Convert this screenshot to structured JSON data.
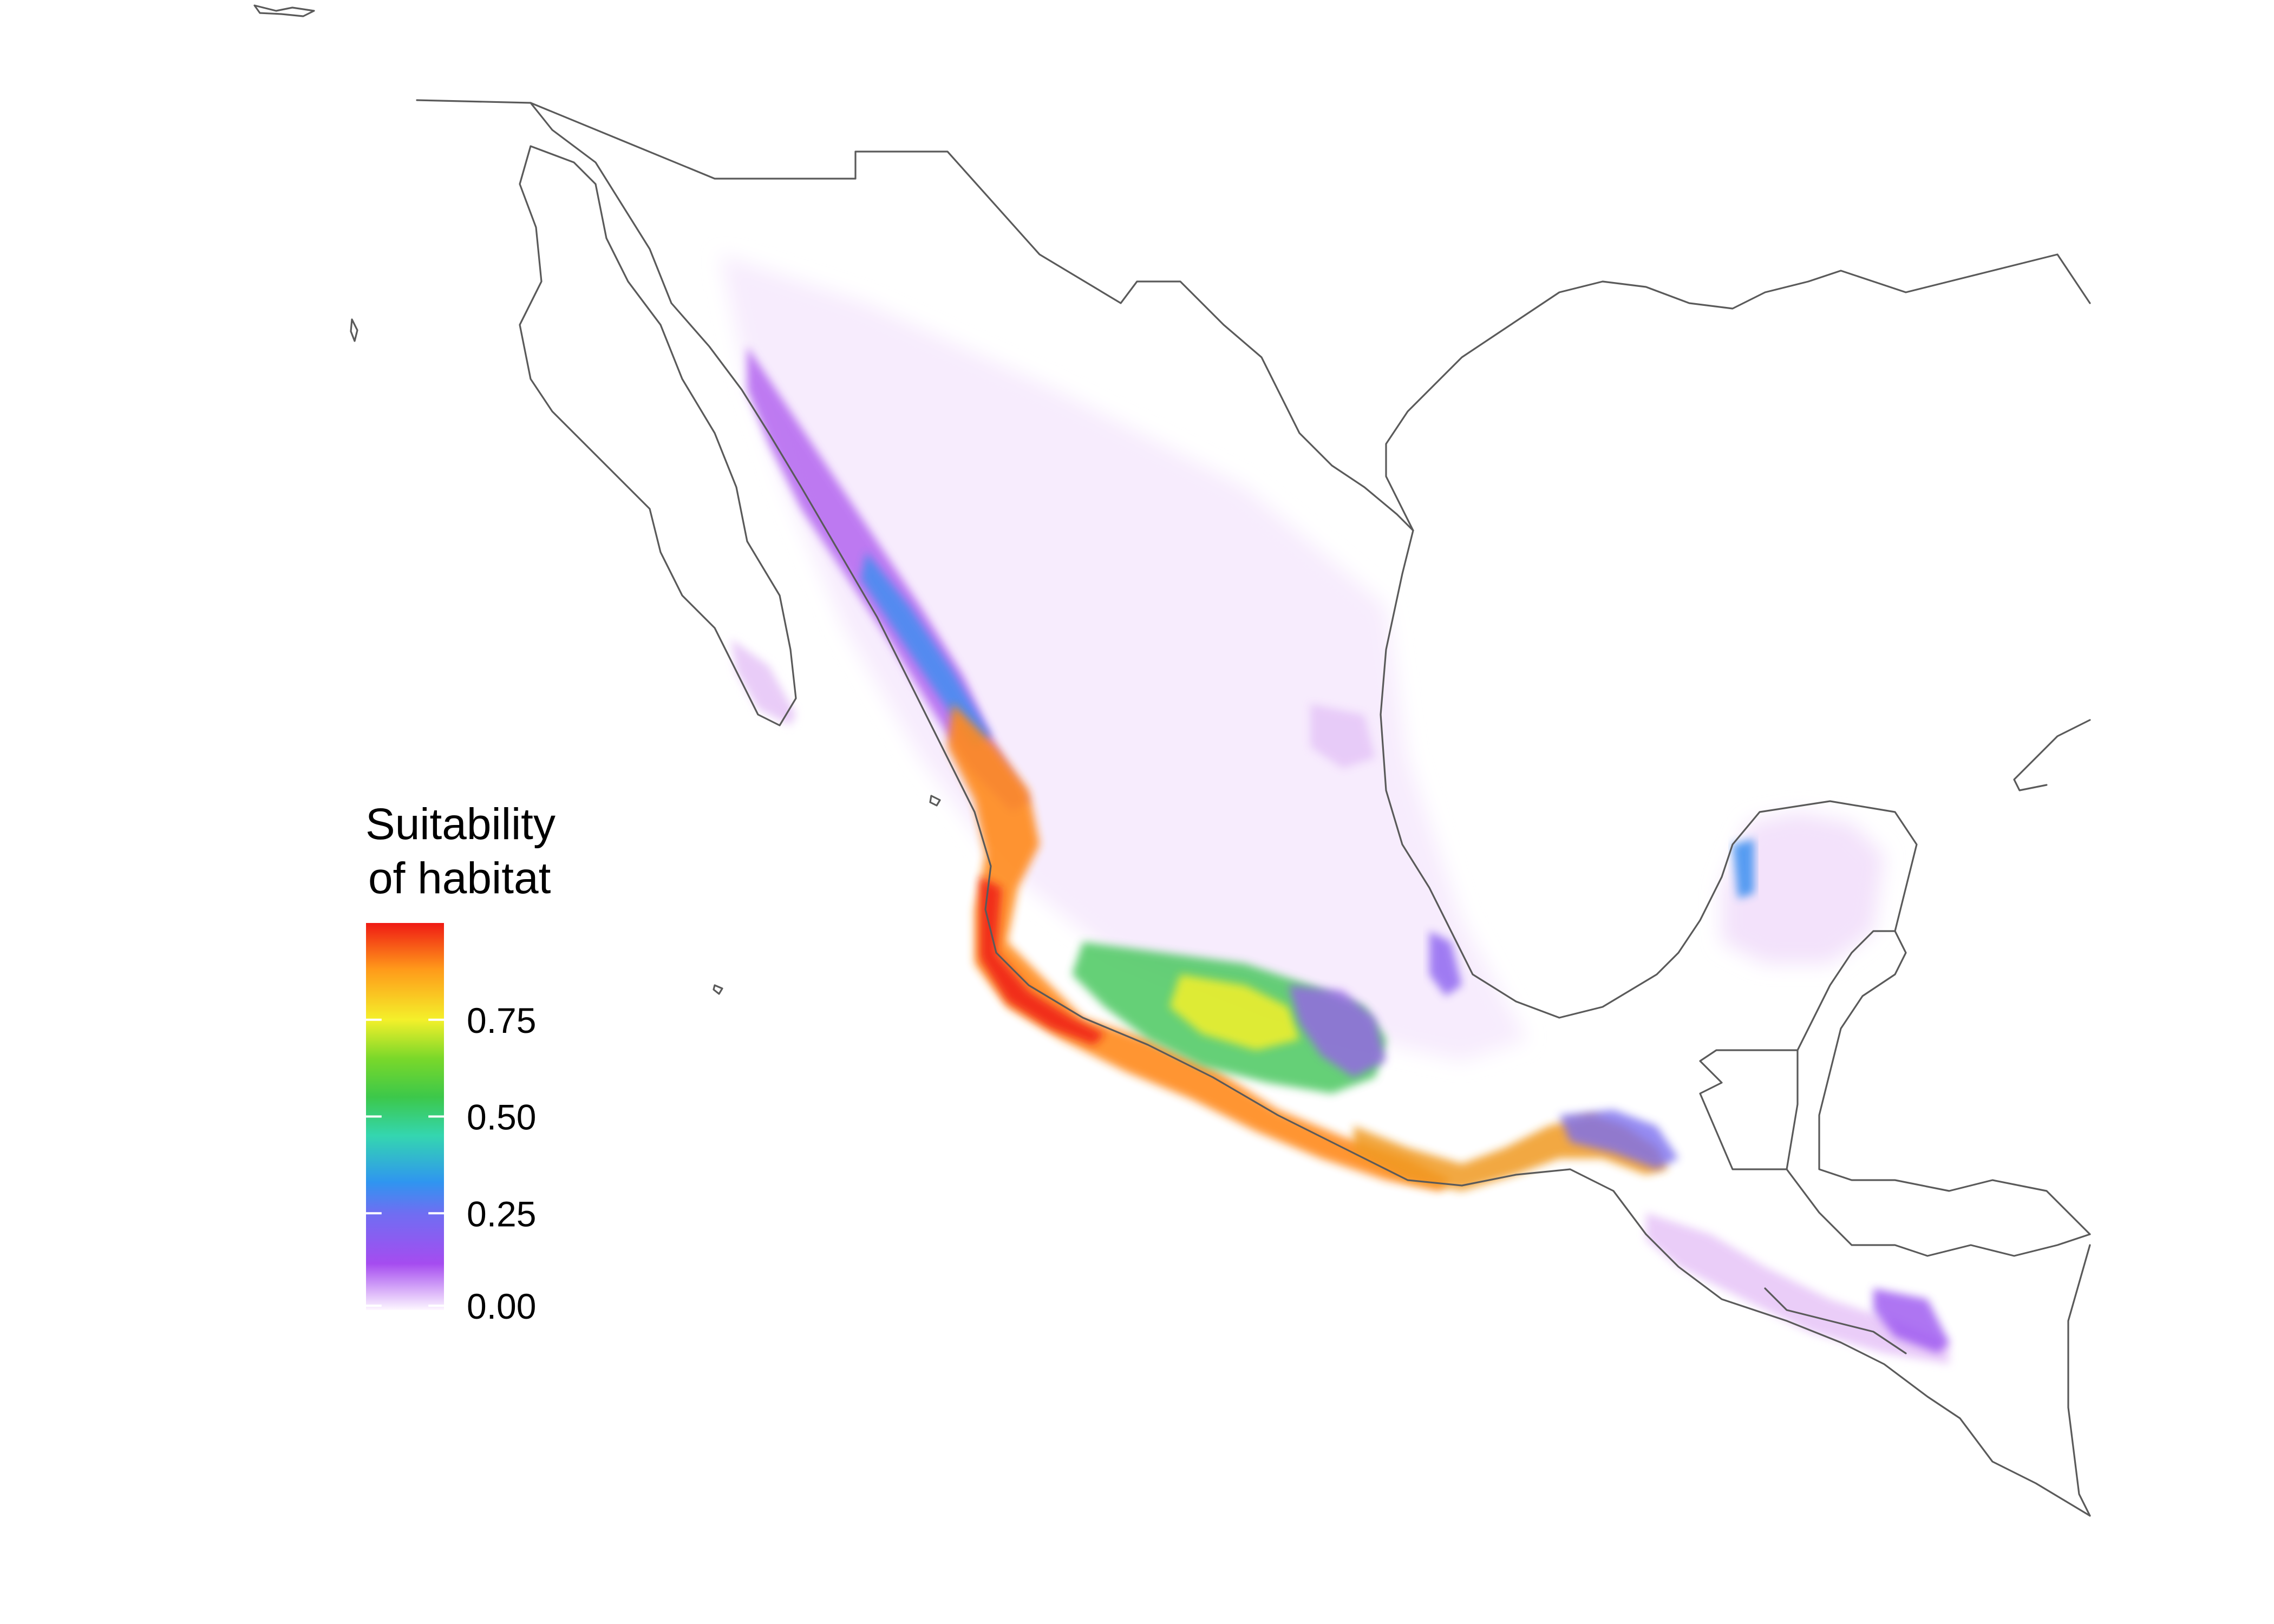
{
  "legend": {
    "title_line1": "Suitability",
    "title_line2": "of habitat",
    "ticks": [
      {
        "value": 0.0,
        "label": "0.00"
      },
      {
        "value": 0.25,
        "label": "0.25"
      },
      {
        "value": 0.5,
        "label": "0.50"
      },
      {
        "value": 0.75,
        "label": "0.75"
      }
    ],
    "range": [
      0.0,
      1.0
    ],
    "colors": [
      {
        "stop": 0.0,
        "color": "#fdf7ff"
      },
      {
        "stop": 0.12,
        "color": "#a54cf0"
      },
      {
        "stop": 0.25,
        "color": "#6f6ef2"
      },
      {
        "stop": 0.33,
        "color": "#2f95f0"
      },
      {
        "stop": 0.45,
        "color": "#34d6b0"
      },
      {
        "stop": 0.55,
        "color": "#3cc84a"
      },
      {
        "stop": 0.65,
        "color": "#7ad82a"
      },
      {
        "stop": 0.75,
        "color": "#f4f02a"
      },
      {
        "stop": 0.88,
        "color": "#ff9a1a"
      },
      {
        "stop": 1.0,
        "color": "#ef1a14"
      }
    ]
  },
  "map": {
    "region": "Mexico and northern Central America",
    "outline_color": "#5a5a5a",
    "background_color": "#ffffff"
  }
}
